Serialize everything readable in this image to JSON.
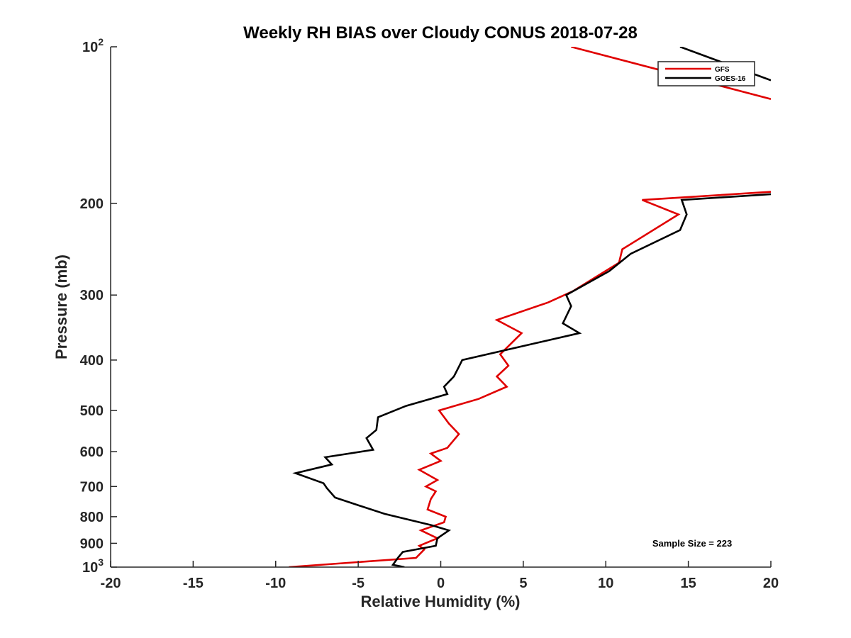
{
  "chart_data": {
    "type": "line",
    "title": "Weekly RH BIAS over Cloudy CONUS 2018-07-28",
    "xlabel": "Relative Humidity (%)",
    "ylabel": "Pressure (mb)",
    "xlim": [
      -20,
      20
    ],
    "ylim": [
      100,
      1000
    ],
    "y_scale": "log",
    "y_reversed": true,
    "grid": false,
    "legend_position": "top-right",
    "x_ticks": [
      {
        "value": -20,
        "label": "-20"
      },
      {
        "value": -15,
        "label": "-15"
      },
      {
        "value": -10,
        "label": "-10"
      },
      {
        "value": -5,
        "label": "-5"
      },
      {
        "value": 0,
        "label": "0"
      },
      {
        "value": 5,
        "label": "5"
      },
      {
        "value": 10,
        "label": "10"
      },
      {
        "value": 15,
        "label": "15"
      },
      {
        "value": 20,
        "label": "20"
      }
    ],
    "y_ticks": [
      {
        "value": 100,
        "label": "10",
        "exp": "2"
      },
      {
        "value": 200,
        "label": "200",
        "exp": ""
      },
      {
        "value": 300,
        "label": "300",
        "exp": ""
      },
      {
        "value": 400,
        "label": "400",
        "exp": ""
      },
      {
        "value": 500,
        "label": "500",
        "exp": ""
      },
      {
        "value": 600,
        "label": "600",
        "exp": ""
      },
      {
        "value": 700,
        "label": "700",
        "exp": ""
      },
      {
        "value": 800,
        "label": "800",
        "exp": ""
      },
      {
        "value": 900,
        "label": "900",
        "exp": ""
      },
      {
        "value": 1000,
        "label": "10",
        "exp": "3"
      }
    ],
    "annotation": "Sample Size = 223",
    "series": [
      {
        "name": "GFS",
        "color": "#e00000",
        "points": [
          [
            -9.2,
            1000
          ],
          [
            -1.5,
            960
          ],
          [
            -1.0,
            925
          ],
          [
            -1.3,
            910
          ],
          [
            -0.2,
            880
          ],
          [
            -1.2,
            850
          ],
          [
            0.2,
            820
          ],
          [
            0.3,
            800
          ],
          [
            -0.8,
            775
          ],
          [
            -0.6,
            740
          ],
          [
            -0.3,
            715
          ],
          [
            -0.9,
            700
          ],
          [
            -0.2,
            680
          ],
          [
            -1.3,
            650
          ],
          [
            0.0,
            625
          ],
          [
            -0.6,
            605
          ],
          [
            0.4,
            590
          ],
          [
            1.1,
            555
          ],
          [
            0.5,
            530
          ],
          [
            -0.1,
            500
          ],
          [
            2.3,
            475
          ],
          [
            4.0,
            450
          ],
          [
            3.4,
            430
          ],
          [
            4.1,
            410
          ],
          [
            3.6,
            390
          ],
          [
            4.9,
            355
          ],
          [
            3.4,
            335
          ],
          [
            6.5,
            310
          ],
          [
            8.0,
            295
          ],
          [
            10.8,
            260
          ],
          [
            11.0,
            245
          ],
          [
            14.4,
            210
          ],
          [
            12.2,
            197
          ],
          [
            20.0,
            190
          ]
        ]
      },
      {
        "name": "GOES-16",
        "color": "#000000",
        "points": [
          [
            -2.2,
            1000
          ],
          [
            -2.9,
            990
          ],
          [
            -2.6,
            960
          ],
          [
            -2.3,
            935
          ],
          [
            -1.5,
            925
          ],
          [
            -0.3,
            910
          ],
          [
            -0.2,
            880
          ],
          [
            0.5,
            850
          ],
          [
            -0.6,
            830
          ],
          [
            -3.4,
            790
          ],
          [
            -5.3,
            755
          ],
          [
            -6.4,
            735
          ],
          [
            -6.9,
            705
          ],
          [
            -7.1,
            690
          ],
          [
            -8.8,
            660
          ],
          [
            -6.6,
            635
          ],
          [
            -7.0,
            615
          ],
          [
            -4.1,
            595
          ],
          [
            -4.5,
            565
          ],
          [
            -3.9,
            545
          ],
          [
            -3.8,
            515
          ],
          [
            -2.1,
            490
          ],
          [
            0.4,
            465
          ],
          [
            0.2,
            450
          ],
          [
            0.8,
            430
          ],
          [
            1.1,
            412
          ],
          [
            1.3,
            400
          ],
          [
            8.4,
            355
          ],
          [
            7.4,
            340
          ],
          [
            7.9,
            315
          ],
          [
            7.6,
            300
          ],
          [
            10.2,
            270
          ],
          [
            11.5,
            250
          ],
          [
            14.5,
            225
          ],
          [
            14.9,
            210
          ],
          [
            14.6,
            197
          ],
          [
            20.0,
            192
          ]
        ]
      }
    ],
    "upper_segments": [
      {
        "name": "GFS",
        "color": "#e00000",
        "points": [
          [
            7.9,
            100
          ],
          [
            20.0,
            126
          ]
        ]
      },
      {
        "name": "GOES-16",
        "color": "#000000",
        "points": [
          [
            14.5,
            100
          ],
          [
            20.0,
            116
          ]
        ]
      }
    ]
  }
}
